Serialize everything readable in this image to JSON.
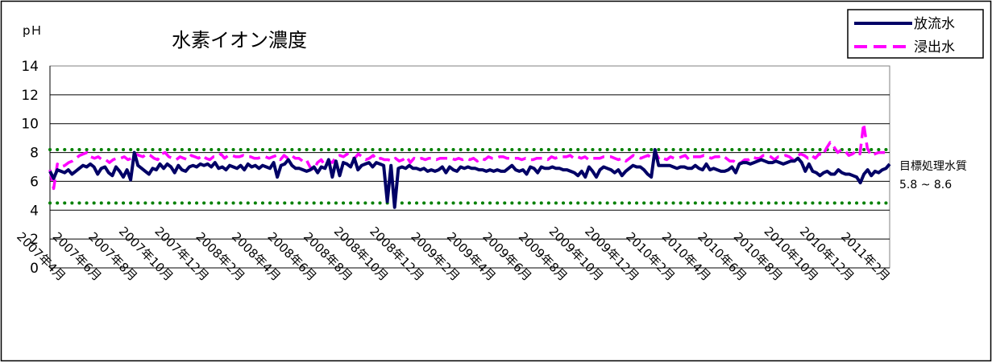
{
  "chart_data": {
    "type": "line",
    "title": "水素イオン濃度",
    "ylabel": "pＨ",
    "ylim": [
      0,
      14
    ],
    "y_ticks": [
      "0",
      "2",
      "4",
      "6",
      "8",
      "10",
      "12",
      "14"
    ],
    "grid": true,
    "legend_position": "top-right",
    "x_tick_labels": [
      "2007年4月",
      "2007年6月",
      "2007年8月",
      "2007年10月",
      "2007年12月",
      "2008年2月",
      "2008年4月",
      "2008年6月",
      "2008年8月",
      "2008年10月",
      "2008年12月",
      "2009年2月",
      "2009年4月",
      "2009年6月",
      "2009年8月",
      "2009年10月",
      "2009年12月",
      "2010年2月",
      "2010年4月",
      "2010年6月",
      "2010年8月",
      "2010年10月",
      "2010年12月",
      "2011年2月"
    ],
    "series": [
      {
        "name": "放流水",
        "color": "#000066",
        "style": "solid",
        "values": [
          6.7,
          6.2,
          6.8,
          6.7,
          6.6,
          6.8,
          6.5,
          6.7,
          6.9,
          7.1,
          7.0,
          7.2,
          7.0,
          6.5,
          6.9,
          7.0,
          6.6,
          6.4,
          7.0,
          6.7,
          6.3,
          6.8,
          6.1,
          8.0,
          7.1,
          6.9,
          6.7,
          6.5,
          6.9,
          6.8,
          7.2,
          6.9,
          7.2,
          7.0,
          6.6,
          7.1,
          6.8,
          6.7,
          7.0,
          7.1,
          7.0,
          7.2,
          7.1,
          7.2,
          7.0,
          7.3,
          6.9,
          7.0,
          6.8,
          7.1,
          7.0,
          6.9,
          7.1,
          6.8,
          7.2,
          7.0,
          7.1,
          6.9,
          7.1,
          7.0,
          6.9,
          7.3,
          6.3,
          7.1,
          7.2,
          7.5,
          7.1,
          6.9,
          6.9,
          6.8,
          6.7,
          6.8,
          7.0,
          6.6,
          7.0,
          6.9,
          7.5,
          6.3,
          7.4,
          6.4,
          7.3,
          7.2,
          7.0,
          7.6,
          6.8,
          7.1,
          7.2,
          7.3,
          7.0,
          7.3,
          7.2,
          7.1,
          4.6,
          7.1,
          4.2,
          6.9,
          7.0,
          6.9,
          7.1,
          6.9,
          6.9,
          6.8,
          6.9,
          6.7,
          6.8,
          6.7,
          6.8,
          7.0,
          6.6,
          7.0,
          6.8,
          6.7,
          7.0,
          6.9,
          7.0,
          6.9,
          6.9,
          6.8,
          6.8,
          6.7,
          6.8,
          6.7,
          6.8,
          6.7,
          6.7,
          6.9,
          7.1,
          6.8,
          6.7,
          6.8,
          6.5,
          7.0,
          6.9,
          6.6,
          7.0,
          6.9,
          6.9,
          7.0,
          6.9,
          6.9,
          6.8,
          6.8,
          6.7,
          6.6,
          6.4,
          6.7,
          6.3,
          7.0,
          6.7,
          6.3,
          6.8,
          7.0,
          6.9,
          6.8,
          6.6,
          6.8,
          6.4,
          6.7,
          6.9,
          7.1,
          7.0,
          7.0,
          6.8,
          6.5,
          6.3,
          8.2,
          7.1,
          7.1,
          7.1,
          7.1,
          7.0,
          6.9,
          7.0,
          7.0,
          6.9,
          6.9,
          7.1,
          6.9,
          6.8,
          7.2,
          6.8,
          6.9,
          6.8,
          6.7,
          6.7,
          6.8,
          7.0,
          6.6,
          7.2,
          7.3,
          7.3,
          7.2,
          7.3,
          7.4,
          7.5,
          7.4,
          7.3,
          7.3,
          7.4,
          7.3,
          7.2,
          7.3,
          7.4,
          7.4,
          7.6,
          7.3,
          6.7,
          7.2,
          6.7,
          6.6,
          6.4,
          6.6,
          6.7,
          6.5,
          6.5,
          6.8,
          6.6,
          6.5,
          6.5,
          6.4,
          6.3,
          5.9,
          6.5,
          6.8,
          6.4,
          6.7,
          6.6,
          6.8,
          6.9,
          7.2
        ]
      },
      {
        "name": "浸出水",
        "color": "#ff00ff",
        "style": "dashed",
        "values": [
          6.8,
          5.5,
          7.2,
          7.0,
          7.1,
          7.3,
          7.4,
          7.6,
          7.8,
          7.9,
          8.0,
          7.7,
          7.6,
          7.7,
          7.5,
          7.5,
          7.3,
          7.5,
          7.6,
          7.6,
          7.7,
          7.5,
          7.6,
          7.9,
          7.8,
          7.7,
          7.9,
          7.8,
          7.6,
          7.5,
          7.9,
          8.0,
          7.7,
          7.6,
          7.5,
          7.7,
          7.6,
          7.5,
          7.8,
          7.7,
          7.6,
          7.8,
          7.6,
          7.5,
          7.7,
          7.7,
          7.9,
          7.6,
          7.8,
          7.8,
          7.7,
          7.7,
          7.8,
          7.7,
          7.7,
          7.6,
          7.6,
          7.7,
          7.7,
          7.6,
          7.7,
          7.8,
          7.5,
          7.8,
          7.6,
          7.8,
          7.6,
          7.6,
          7.4,
          7.5,
          7.0,
          6.8,
          7.3,
          7.5,
          7.1,
          7.4,
          7.3,
          7.7,
          7.8,
          7.7,
          7.9,
          7.6,
          7.6,
          7.9,
          7.7,
          7.5,
          7.6,
          7.8,
          7.5,
          7.6,
          7.5,
          7.5,
          7.4,
          7.6,
          7.4,
          7.5,
          7.7,
          7.3,
          7.6,
          7.5,
          7.6,
          7.5,
          7.6,
          7.6,
          7.5,
          7.6,
          7.6,
          7.6,
          7.6,
          7.5,
          7.6,
          7.5,
          7.6,
          7.5,
          7.6,
          7.4,
          7.6,
          7.5,
          7.7,
          7.6,
          7.6,
          7.7,
          7.7,
          7.6,
          7.6,
          7.6,
          7.6,
          7.5,
          7.6,
          7.5,
          7.5,
          7.6,
          7.6,
          7.6,
          7.5,
          7.7,
          7.6,
          7.7,
          7.7,
          7.7,
          7.8,
          7.6,
          7.7,
          7.6,
          7.7,
          7.5,
          7.6,
          7.6,
          7.6,
          7.7,
          7.7,
          7.7,
          7.6,
          7.5,
          7.6,
          7.4,
          7.6,
          7.8,
          7.7,
          7.6,
          7.7,
          7.8,
          7.6,
          8.0,
          7.5,
          7.6,
          7.5,
          7.7,
          7.6,
          7.6,
          7.7,
          7.8,
          7.5,
          7.7,
          7.7,
          7.7,
          7.8,
          7.7,
          7.6,
          7.7,
          7.7,
          7.8,
          7.6,
          7.4,
          7.4,
          7.2,
          7.3,
          7.5,
          7.5,
          7.7,
          7.6,
          7.6,
          7.8,
          7.8,
          7.7,
          7.5,
          7.7,
          7.7,
          7.8,
          7.7,
          7.5,
          7.7,
          7.9,
          7.8,
          7.6,
          7.8,
          7.6,
          7.9,
          7.8,
          8.3,
          8.7,
          8.4,
          8.0,
          8.2,
          8.1,
          7.8,
          7.9,
          8.1,
          7.9,
          10.0,
          8.3,
          7.8,
          7.9,
          8.0,
          8.0,
          8.0,
          8.1
        ]
      }
    ],
    "reference_lines": [
      {
        "value": 8.2,
        "color": "#008000",
        "style": "dotted"
      },
      {
        "value": 4.5,
        "color": "#008000",
        "style": "dotted"
      }
    ],
    "annotation": {
      "label": "目標処理水質",
      "range": "5.8 ~ 8.6"
    }
  }
}
